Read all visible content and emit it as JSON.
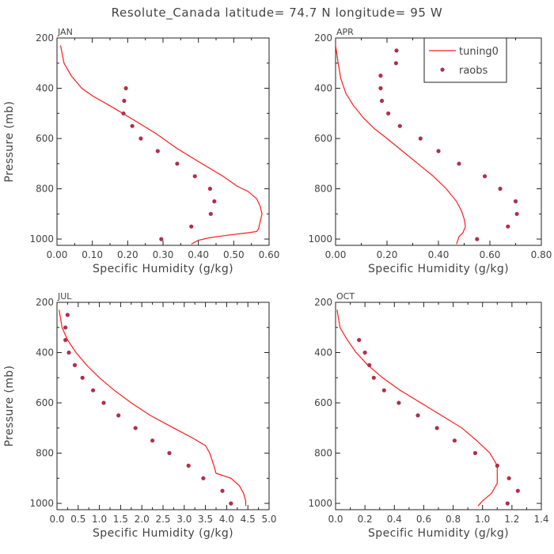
{
  "figure": {
    "title": "Resolute_Canada  latitude= 74.7 N longitude= 95 W"
  },
  "legend": {
    "model_label": "tuning0",
    "obs_label": "raobs",
    "placement": "top-right of APR panel"
  },
  "colors": {
    "model_line": "#ff1a1a",
    "obs_marker": "#b0304a",
    "axis": "#222222",
    "text": "#444444"
  },
  "chart_data": [
    {
      "type": "line",
      "panel": "JAN",
      "title": "JAN",
      "xlabel": "Specific Humidity (g/kg)",
      "ylabel": "Pressure (mb)",
      "xlim": [
        0,
        0.6
      ],
      "ylim": [
        1025,
        200
      ],
      "xticks": [
        "0.00",
        "0.10",
        "0.20",
        "0.30",
        "0.40",
        "0.50",
        "0.60"
      ],
      "yticks": [
        "200",
        "400",
        "600",
        "800",
        "1000"
      ],
      "series": [
        {
          "name": "tuning0",
          "kind": "line",
          "x": [
            0.01,
            0.02,
            0.04,
            0.07,
            0.1,
            0.15,
            0.21,
            0.28,
            0.34,
            0.41,
            0.47,
            0.51,
            0.54,
            0.565,
            0.575,
            0.58,
            0.575,
            0.57,
            0.565,
            0.54,
            0.48,
            0.43,
            0.4,
            0.38
          ],
          "y": [
            230,
            300,
            350,
            400,
            430,
            470,
            520,
            580,
            640,
            700,
            750,
            790,
            810,
            840,
            870,
            900,
            930,
            960,
            970,
            975,
            985,
            995,
            1005,
            1020
          ]
        },
        {
          "name": "raobs",
          "kind": "points",
          "x": [
            0.195,
            0.19,
            0.188,
            0.213,
            0.237,
            0.285,
            0.34,
            0.39,
            0.433,
            0.445,
            0.435,
            0.38,
            0.295
          ],
          "y": [
            400,
            450,
            500,
            550,
            600,
            650,
            700,
            750,
            800,
            850,
            900,
            950,
            1000
          ]
        }
      ]
    },
    {
      "type": "line",
      "panel": "APR",
      "title": "APR",
      "xlabel": "Specific Humidity (g/kg)",
      "ylabel": "",
      "xlim": [
        0,
        0.8
      ],
      "ylim": [
        1025,
        200
      ],
      "xticks": [
        "0.00",
        "0.20",
        "0.40",
        "0.60",
        "0.80"
      ],
      "yticks": [
        "200",
        "400",
        "600",
        "800",
        "1000"
      ],
      "series": [
        {
          "name": "tuning0",
          "kind": "line",
          "x": [
            0.0,
            0.01,
            0.02,
            0.04,
            0.07,
            0.11,
            0.15,
            0.2,
            0.26,
            0.32,
            0.38,
            0.43,
            0.47,
            0.49,
            0.5,
            0.505,
            0.495,
            0.48,
            0.47
          ],
          "y": [
            230,
            300,
            360,
            420,
            470,
            520,
            560,
            600,
            650,
            700,
            750,
            800,
            850,
            890,
            920,
            950,
            975,
            990,
            1020
          ]
        },
        {
          "name": "raobs",
          "kind": "points",
          "x": [
            0.237,
            0.235,
            0.175,
            0.175,
            0.18,
            0.205,
            0.25,
            0.33,
            0.4,
            0.48,
            0.58,
            0.64,
            0.7,
            0.705,
            0.67,
            0.55
          ],
          "y": [
            250,
            300,
            350,
            400,
            450,
            500,
            550,
            600,
            650,
            700,
            750,
            800,
            850,
            900,
            950,
            1000
          ]
        }
      ]
    },
    {
      "type": "line",
      "panel": "JUL",
      "title": "JUL",
      "xlabel": "Specific Humidity (g/kg)",
      "ylabel": "Pressure (mb)",
      "xlim": [
        0,
        5.0
      ],
      "ylim": [
        1025,
        200
      ],
      "xticks": [
        "0.0",
        "0.5",
        "1.0",
        "1.5",
        "2.0",
        "2.5",
        "3.0",
        "3.5",
        "4.0",
        "4.5",
        "5.0"
      ],
      "yticks": [
        "200",
        "400",
        "600",
        "800",
        "1000"
      ],
      "series": [
        {
          "name": "tuning0",
          "kind": "line",
          "x": [
            0.05,
            0.12,
            0.25,
            0.45,
            0.7,
            1.0,
            1.35,
            1.75,
            2.2,
            2.75,
            3.2,
            3.5,
            3.6,
            3.7,
            3.75,
            4.1,
            4.3,
            4.4,
            4.45,
            4.45
          ],
          "y": [
            230,
            300,
            350,
            400,
            450,
            500,
            550,
            600,
            650,
            700,
            740,
            770,
            800,
            850,
            880,
            900,
            930,
            960,
            990,
            1010
          ]
        },
        {
          "name": "raobs",
          "kind": "points",
          "x": [
            0.25,
            0.2,
            0.2,
            0.28,
            0.42,
            0.6,
            0.85,
            1.1,
            1.45,
            1.85,
            2.25,
            2.65,
            3.1,
            3.45,
            3.9,
            4.1
          ],
          "y": [
            250,
            300,
            350,
            400,
            450,
            500,
            550,
            600,
            650,
            700,
            750,
            800,
            850,
            900,
            950,
            1000
          ]
        }
      ]
    },
    {
      "type": "line",
      "panel": "OCT",
      "title": "OCT",
      "xlabel": "Specific Humidity (g/kg)",
      "ylabel": "",
      "xlim": [
        0,
        1.4
      ],
      "ylim": [
        1025,
        200
      ],
      "xticks": [
        "0.0",
        "0.2",
        "0.4",
        "0.6",
        "0.8",
        "1.0",
        "1.2",
        "1.4"
      ],
      "yticks": [
        "200",
        "400",
        "600",
        "800",
        "1000"
      ],
      "series": [
        {
          "name": "tuning0",
          "kind": "line",
          "x": [
            0.01,
            0.03,
            0.08,
            0.14,
            0.22,
            0.32,
            0.44,
            0.58,
            0.72,
            0.86,
            0.96,
            1.05,
            1.1,
            1.1,
            1.06,
            1.0,
            0.97
          ],
          "y": [
            230,
            300,
            350,
            400,
            450,
            500,
            550,
            600,
            650,
            700,
            750,
            800,
            850,
            920,
            960,
            990,
            1010
          ]
        },
        {
          "name": "raobs",
          "kind": "points",
          "x": [
            0.16,
            0.2,
            0.23,
            0.26,
            0.33,
            0.43,
            0.56,
            0.69,
            0.81,
            0.95,
            1.1,
            1.18,
            1.24,
            1.17
          ],
          "y": [
            350,
            400,
            450,
            500,
            550,
            600,
            650,
            700,
            750,
            800,
            850,
            900,
            950,
            1000
          ]
        }
      ]
    }
  ]
}
